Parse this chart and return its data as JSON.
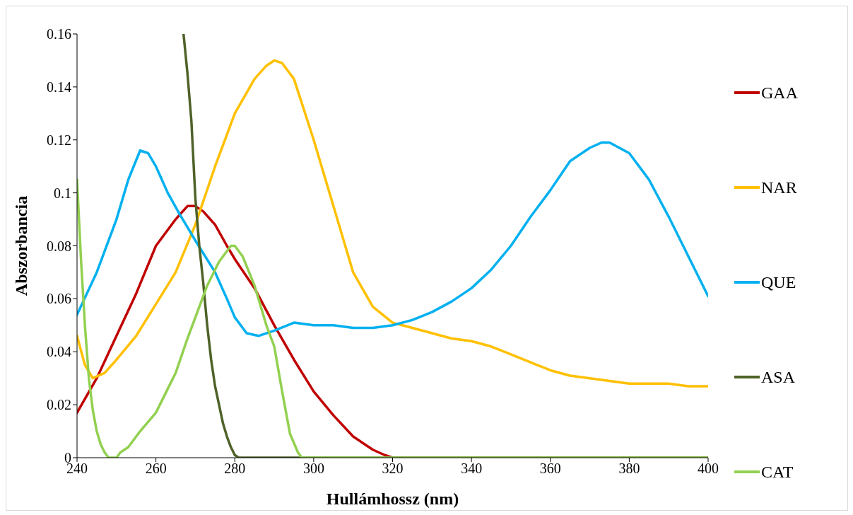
{
  "chart_data": {
    "type": "line",
    "xlabel": "Hullámhossz (nm)",
    "ylabel": "Abszorbancia",
    "xlim": [
      240,
      400
    ],
    "xticks": [
      240,
      260,
      280,
      300,
      320,
      340,
      360,
      380,
      400
    ],
    "ylim": [
      0,
      0.16
    ],
    "yticks": [
      0,
      0.02,
      0.04,
      0.06,
      0.08,
      0.1,
      0.12,
      0.14,
      0.16
    ],
    "grid": false,
    "legend": "right",
    "marker": "none",
    "line_style": "solid",
    "series": [
      {
        "name": "GAA",
        "color": "#c00000",
        "x": [
          240,
          245,
          250,
          255,
          260,
          265,
          268,
          270,
          272,
          275,
          278,
          280,
          285,
          290,
          295,
          300,
          305,
          310,
          315,
          318,
          320,
          400
        ],
        "values": [
          0.017,
          0.03,
          0.046,
          0.062,
          0.08,
          0.09,
          0.095,
          0.095,
          0.093,
          0.088,
          0.08,
          0.075,
          0.064,
          0.05,
          0.037,
          0.025,
          0.016,
          0.008,
          0.003,
          0.001,
          0,
          0
        ]
      },
      {
        "name": "NAR",
        "color": "#ffc000",
        "x": [
          240,
          242,
          244,
          247,
          250,
          255,
          260,
          265,
          270,
          275,
          280,
          285,
          288,
          290,
          292,
          295,
          300,
          305,
          310,
          315,
          320,
          325,
          330,
          335,
          340,
          345,
          350,
          355,
          360,
          365,
          370,
          375,
          380,
          390,
          395,
          400
        ],
        "values": [
          0.046,
          0.035,
          0.03,
          0.032,
          0.037,
          0.046,
          0.058,
          0.07,
          0.088,
          0.11,
          0.13,
          0.143,
          0.148,
          0.15,
          0.149,
          0.143,
          0.12,
          0.095,
          0.07,
          0.057,
          0.051,
          0.049,
          0.047,
          0.045,
          0.044,
          0.042,
          0.039,
          0.036,
          0.033,
          0.031,
          0.03,
          0.029,
          0.028,
          0.028,
          0.027,
          0.027
        ]
      },
      {
        "name": "QUE",
        "color": "#00b0f0",
        "x": [
          240,
          245,
          250,
          253,
          256,
          258,
          260,
          263,
          266,
          270,
          275,
          278,
          280,
          283,
          286,
          290,
          295,
          300,
          305,
          310,
          315,
          320,
          325,
          330,
          335,
          340,
          345,
          350,
          355,
          360,
          365,
          370,
          373,
          375,
          380,
          385,
          390,
          395,
          400
        ],
        "values": [
          0.054,
          0.07,
          0.09,
          0.105,
          0.116,
          0.115,
          0.11,
          0.1,
          0.092,
          0.082,
          0.07,
          0.06,
          0.053,
          0.047,
          0.046,
          0.048,
          0.051,
          0.05,
          0.05,
          0.049,
          0.049,
          0.05,
          0.052,
          0.055,
          0.059,
          0.064,
          0.071,
          0.08,
          0.091,
          0.101,
          0.112,
          0.117,
          0.119,
          0.119,
          0.115,
          0.105,
          0.091,
          0.076,
          0.061
        ]
      },
      {
        "name": "ASA",
        "color": "#4f6228",
        "x": [
          267,
          268,
          269,
          270,
          271,
          272,
          273,
          274,
          275,
          276,
          277,
          278,
          279,
          280,
          281,
          400
        ],
        "values": [
          0.16,
          0.145,
          0.127,
          0.098,
          0.08,
          0.066,
          0.05,
          0.037,
          0.027,
          0.02,
          0.013,
          0.008,
          0.004,
          0.001,
          0,
          0
        ]
      },
      {
        "name": "CAT",
        "color": "#92d050",
        "x": [
          240,
          241,
          242,
          243,
          244,
          245,
          246,
          247,
          248,
          250,
          251,
          253,
          256,
          260,
          262,
          265,
          268,
          270,
          273,
          276,
          279,
          280,
          282,
          285,
          288,
          290,
          292,
          294,
          296,
          297,
          400
        ],
        "values": [
          0.105,
          0.075,
          0.05,
          0.03,
          0.018,
          0.01,
          0.005,
          0.002,
          0,
          0,
          0.002,
          0.004,
          0.01,
          0.017,
          0.023,
          0.032,
          0.045,
          0.053,
          0.065,
          0.074,
          0.08,
          0.08,
          0.076,
          0.065,
          0.05,
          0.042,
          0.025,
          0.009,
          0.002,
          0,
          0
        ]
      }
    ]
  }
}
